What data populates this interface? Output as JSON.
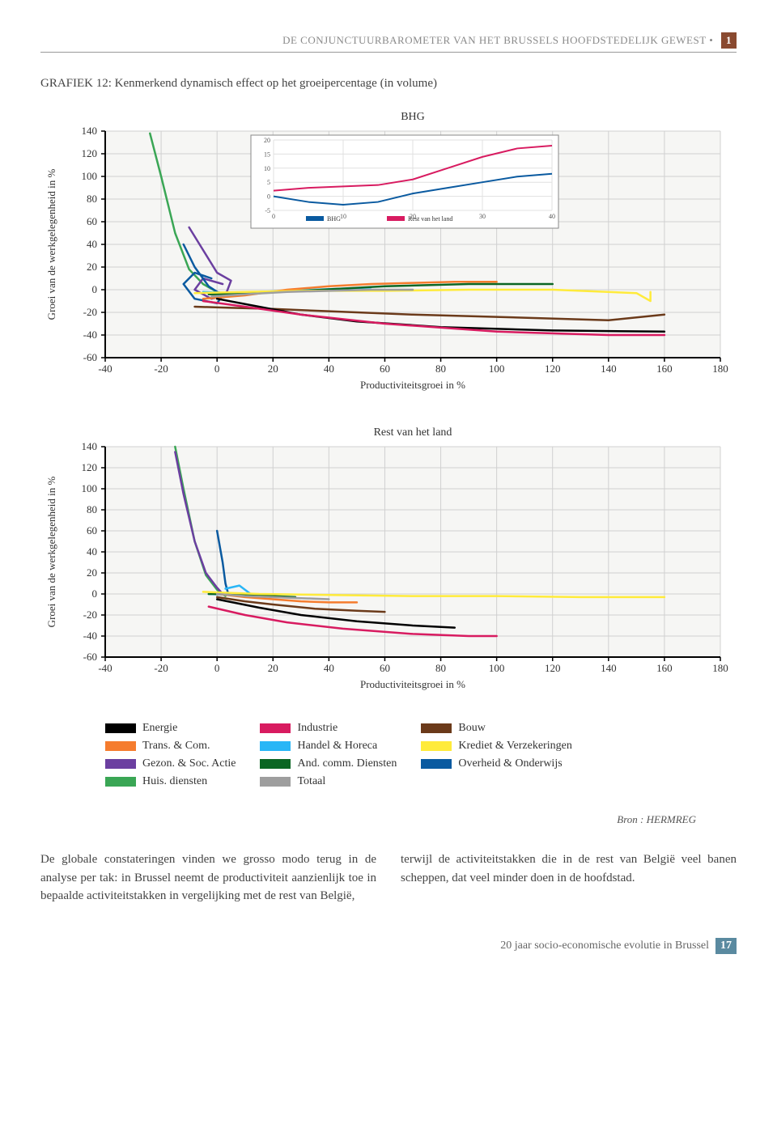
{
  "header": {
    "text": "DE CONJUNCTUURBAROMETER VAN HET BRUSSELS HOOFDSTEDELIJK GEWEST",
    "bullet": "•",
    "page_num_top": "1"
  },
  "graph_title": "GRAFIEK 12: Kenmerkend dynamisch effect op het groeipercentage (in volume)",
  "chart": {
    "top_title": "BHG",
    "bottom_title": "Rest van het land",
    "ylabel": "Groei van de werkgelegenheid in %",
    "xlabel": "Productiviteitsgroei in %",
    "xlim": [
      -40,
      180
    ],
    "ylim": [
      -60,
      140
    ],
    "xticks": [
      -40,
      -20,
      0,
      20,
      40,
      60,
      80,
      100,
      120,
      140,
      160,
      180
    ],
    "yticks": [
      -60,
      -40,
      -20,
      0,
      20,
      40,
      60,
      80,
      100,
      120,
      140
    ],
    "grid_color": "#d0d0d0",
    "axis_color": "#000000",
    "bg_color": "#f6f6f4",
    "inset": {
      "xlim": [
        0,
        40
      ],
      "ylim": [
        -5,
        20
      ],
      "xticks": [
        0,
        10,
        20,
        30,
        40
      ],
      "yticks": [
        -5,
        0,
        5,
        10,
        15,
        20
      ],
      "legend": [
        "BHG",
        "Rest van het land"
      ],
      "legend_colors": [
        "#0a5aa0",
        "#d81b60"
      ],
      "bhg_path": [
        [
          0,
          0
        ],
        [
          5,
          -2
        ],
        [
          10,
          -3
        ],
        [
          15,
          -2
        ],
        [
          20,
          1
        ],
        [
          25,
          3
        ],
        [
          30,
          5
        ],
        [
          35,
          7
        ],
        [
          40,
          8
        ]
      ],
      "rest_path": [
        [
          0,
          2
        ],
        [
          5,
          3
        ],
        [
          10,
          3.5
        ],
        [
          15,
          4
        ],
        [
          20,
          6
        ],
        [
          25,
          10
        ],
        [
          30,
          14
        ],
        [
          35,
          17
        ],
        [
          40,
          18
        ]
      ]
    },
    "series": {
      "energie": {
        "color": "#000000",
        "label": "Energie"
      },
      "trans": {
        "color": "#f57c2e",
        "label": "Trans. & Com."
      },
      "gezon": {
        "color": "#6b3fa0",
        "label": "Gezon. & Soc. Actie"
      },
      "huis": {
        "color": "#3aa655",
        "label": "Huis. diensten"
      },
      "industrie": {
        "color": "#d81b60",
        "label": "Industrie"
      },
      "handel": {
        "color": "#29b6f6",
        "label": "Handel & Horeca"
      },
      "andcomm": {
        "color": "#0b6623",
        "label": "And. comm. Diensten"
      },
      "totaal": {
        "color": "#9e9e9e",
        "label": "Totaal"
      },
      "bouw": {
        "color": "#6b3a1a",
        "label": "Bouw"
      },
      "krediet": {
        "color": "#ffeb3b",
        "label": "Krediet & Verzekeringen"
      },
      "overheid": {
        "color": "#0a5aa0",
        "label": "Overheid & Onderwijs"
      }
    },
    "top_paths": {
      "huis": [
        [
          -24,
          138
        ],
        [
          -20,
          100
        ],
        [
          -15,
          50
        ],
        [
          -10,
          18
        ],
        [
          -5,
          5
        ],
        [
          0,
          -2
        ],
        [
          5,
          -5
        ],
        [
          8,
          -3
        ]
      ],
      "gezon": [
        [
          -10,
          55
        ],
        [
          -5,
          35
        ],
        [
          0,
          15
        ],
        [
          5,
          8
        ],
        [
          3,
          -5
        ],
        [
          -2,
          -8
        ],
        [
          -8,
          0
        ],
        [
          -5,
          10
        ],
        [
          2,
          5
        ]
      ],
      "overheid": [
        [
          -12,
          40
        ],
        [
          -8,
          20
        ],
        [
          -3,
          3
        ],
        [
          2,
          -5
        ],
        [
          0,
          -12
        ],
        [
          -8,
          -8
        ],
        [
          -12,
          5
        ],
        [
          -8,
          15
        ],
        [
          -2,
          10
        ]
      ],
      "handel": [
        [
          -5,
          -2
        ],
        [
          5,
          -3
        ],
        [
          15,
          -2
        ],
        [
          25,
          -1
        ],
        [
          35,
          0
        ],
        [
          45,
          1
        ],
        [
          55,
          2
        ]
      ],
      "andcomm": [
        [
          -3,
          -4
        ],
        [
          5,
          -4
        ],
        [
          15,
          -3
        ],
        [
          30,
          -1
        ],
        [
          60,
          3
        ],
        [
          90,
          5
        ],
        [
          120,
          5
        ]
      ],
      "trans": [
        [
          -5,
          -8
        ],
        [
          10,
          -5
        ],
        [
          25,
          0
        ],
        [
          40,
          3
        ],
        [
          55,
          5
        ],
        [
          70,
          6
        ],
        [
          85,
          7
        ],
        [
          100,
          7
        ]
      ],
      "krediet": [
        [
          -8,
          -3
        ],
        [
          10,
          -2
        ],
        [
          30,
          -1
        ],
        [
          60,
          -1
        ],
        [
          90,
          0
        ],
        [
          120,
          0
        ],
        [
          150,
          -3
        ],
        [
          155,
          -10
        ],
        [
          155,
          -2
        ]
      ],
      "totaal": [
        [
          -2,
          -6
        ],
        [
          10,
          -4
        ],
        [
          25,
          -2
        ],
        [
          40,
          -1
        ],
        [
          55,
          0
        ],
        [
          70,
          0
        ]
      ],
      "bouw": [
        [
          -8,
          -15
        ],
        [
          5,
          -16
        ],
        [
          20,
          -17
        ],
        [
          40,
          -19
        ],
        [
          70,
          -22
        ],
        [
          100,
          -24
        ],
        [
          140,
          -27
        ],
        [
          160,
          -22
        ]
      ],
      "energie": [
        [
          0,
          -8
        ],
        [
          15,
          -15
        ],
        [
          30,
          -22
        ],
        [
          50,
          -28
        ],
        [
          80,
          -33
        ],
        [
          120,
          -36
        ],
        [
          160,
          -37
        ]
      ],
      "industrie": [
        [
          -5,
          -10
        ],
        [
          10,
          -15
        ],
        [
          30,
          -22
        ],
        [
          60,
          -30
        ],
        [
          100,
          -37
        ],
        [
          140,
          -40
        ],
        [
          160,
          -40
        ]
      ]
    },
    "bottom_paths": {
      "huis": [
        [
          -15,
          140
        ],
        [
          -12,
          100
        ],
        [
          -8,
          50
        ],
        [
          -4,
          18
        ],
        [
          0,
          4
        ],
        [
          3,
          -2
        ]
      ],
      "gezon": [
        [
          -15,
          135
        ],
        [
          -12,
          95
        ],
        [
          -8,
          50
        ],
        [
          -4,
          20
        ],
        [
          0,
          6
        ],
        [
          2,
          0
        ]
      ],
      "overheid": [
        [
          0,
          60
        ],
        [
          2,
          30
        ],
        [
          3,
          10
        ],
        [
          4,
          0
        ]
      ],
      "handel": [
        [
          -3,
          0
        ],
        [
          5,
          -1
        ],
        [
          12,
          0
        ],
        [
          8,
          8
        ],
        [
          3,
          5
        ]
      ],
      "andcomm": [
        [
          -3,
          0
        ],
        [
          5,
          0
        ],
        [
          12,
          -1
        ],
        [
          20,
          -2
        ],
        [
          28,
          -3
        ]
      ],
      "trans": [
        [
          0,
          0
        ],
        [
          10,
          -3
        ],
        [
          20,
          -5
        ],
        [
          30,
          -7
        ],
        [
          40,
          -8
        ],
        [
          50,
          -8
        ]
      ],
      "krediet": [
        [
          -5,
          2
        ],
        [
          15,
          0
        ],
        [
          40,
          -1
        ],
        [
          70,
          -2
        ],
        [
          100,
          -2
        ],
        [
          130,
          -3
        ],
        [
          160,
          -3
        ]
      ],
      "totaal": [
        [
          0,
          0
        ],
        [
          10,
          -2
        ],
        [
          20,
          -3
        ],
        [
          30,
          -4
        ],
        [
          40,
          -5
        ]
      ],
      "bouw": [
        [
          0,
          -3
        ],
        [
          10,
          -7
        ],
        [
          20,
          -10
        ],
        [
          35,
          -14
        ],
        [
          50,
          -16
        ],
        [
          60,
          -17
        ]
      ],
      "energie": [
        [
          0,
          -5
        ],
        [
          15,
          -13
        ],
        [
          30,
          -20
        ],
        [
          50,
          -26
        ],
        [
          70,
          -30
        ],
        [
          85,
          -32
        ]
      ],
      "industrie": [
        [
          -3,
          -12
        ],
        [
          10,
          -20
        ],
        [
          25,
          -27
        ],
        [
          45,
          -33
        ],
        [
          70,
          -38
        ],
        [
          90,
          -40
        ],
        [
          100,
          -40
        ]
      ]
    }
  },
  "source": "Bron : HERMREG",
  "body": {
    "left": "De globale constateringen vinden we grosso modo terug in de analyse per tak: in Brussel neemt de productiviteit aanzienlijk toe in bepaalde activiteitstakken in vergelijking met de rest van België,",
    "right": "terwijl de activiteitstakken die in de rest van België veel banen scheppen, dat veel minder doen in de hoofdstad."
  },
  "footer": {
    "text": "20 jaar socio-economische evolutie in Brussel",
    "page_num": "17"
  }
}
